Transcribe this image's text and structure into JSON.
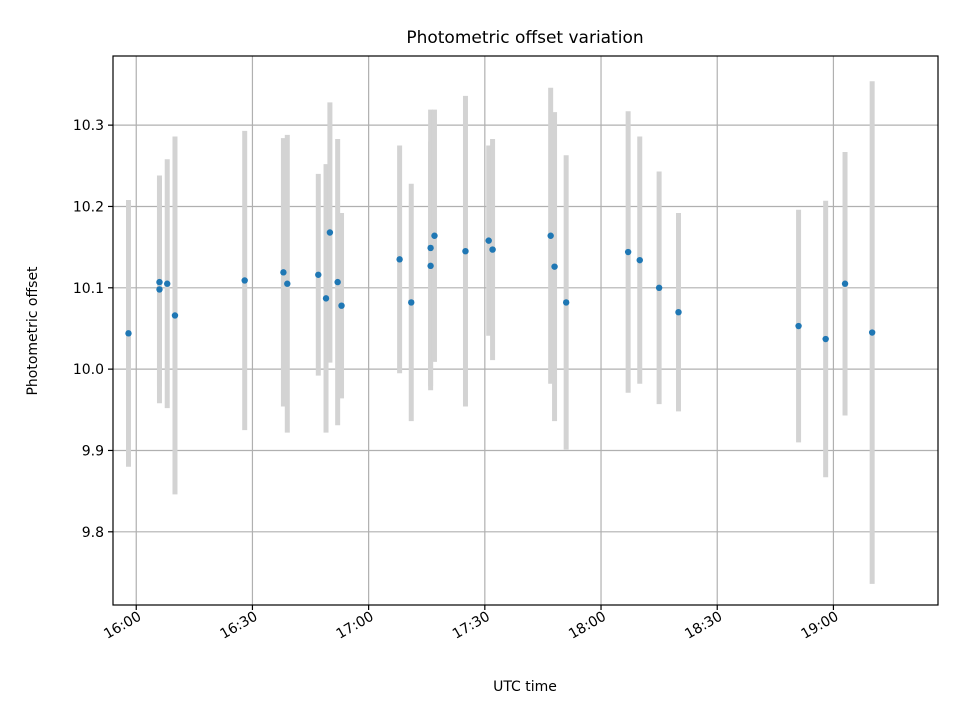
{
  "chart_data": {
    "type": "scatter",
    "title": "Photometric offset variation",
    "xlabel": "UTC time",
    "ylabel": "Photometric offset",
    "xlim": [
      "15:54",
      "19:27"
    ],
    "ylim": [
      9.71,
      10.385
    ],
    "x_ticks": [
      "16:00",
      "16:30",
      "17:00",
      "17:30",
      "18:00",
      "18:30",
      "19:00"
    ],
    "y_ticks": [
      9.8,
      9.9,
      10.0,
      10.1,
      10.2,
      10.3
    ],
    "grid": true,
    "marker_color": "#1f77b4",
    "errorbar_color": "#d3d3d3",
    "points": [
      {
        "x": "15:58",
        "y": 10.044,
        "err": 0.164
      },
      {
        "x": "16:06",
        "y": 10.107,
        "err": 0.128
      },
      {
        "x": "16:06",
        "y": 10.098,
        "err": 0.14
      },
      {
        "x": "16:08",
        "y": 10.105,
        "err": 0.153
      },
      {
        "x": "16:10",
        "y": 10.066,
        "err": 0.22
      },
      {
        "x": "16:28",
        "y": 10.109,
        "err": 0.184
      },
      {
        "x": "16:38",
        "y": 10.119,
        "err": 0.165
      },
      {
        "x": "16:39",
        "y": 10.105,
        "err": 0.183
      },
      {
        "x": "16:47",
        "y": 10.116,
        "err": 0.124
      },
      {
        "x": "16:49",
        "y": 10.087,
        "err": 0.165
      },
      {
        "x": "16:50",
        "y": 10.168,
        "err": 0.16
      },
      {
        "x": "16:52",
        "y": 10.107,
        "err": 0.176
      },
      {
        "x": "16:53",
        "y": 10.078,
        "err": 0.114
      },
      {
        "x": "17:08",
        "y": 10.135,
        "err": 0.14
      },
      {
        "x": "17:11",
        "y": 10.082,
        "err": 0.146
      },
      {
        "x": "17:16",
        "y": 10.127,
        "err": 0.153
      },
      {
        "x": "17:16",
        "y": 10.149,
        "err": 0.17
      },
      {
        "x": "17:17",
        "y": 10.164,
        "err": 0.155
      },
      {
        "x": "17:25",
        "y": 10.145,
        "err": 0.191
      },
      {
        "x": "17:31",
        "y": 10.158,
        "err": 0.117
      },
      {
        "x": "17:32",
        "y": 10.147,
        "err": 0.136
      },
      {
        "x": "17:47",
        "y": 10.164,
        "err": 0.182
      },
      {
        "x": "17:48",
        "y": 10.126,
        "err": 0.19
      },
      {
        "x": "17:51",
        "y": 10.082,
        "err": 0.181
      },
      {
        "x": "18:07",
        "y": 10.144,
        "err": 0.173
      },
      {
        "x": "18:10",
        "y": 10.134,
        "err": 0.152
      },
      {
        "x": "18:15",
        "y": 10.1,
        "err": 0.143
      },
      {
        "x": "18:20",
        "y": 10.07,
        "err": 0.122
      },
      {
        "x": "18:51",
        "y": 10.053,
        "err": 0.143
      },
      {
        "x": "18:58",
        "y": 10.037,
        "err": 0.17
      },
      {
        "x": "19:03",
        "y": 10.105,
        "err": 0.162
      },
      {
        "x": "19:10",
        "y": 10.045,
        "err": 0.309
      }
    ]
  }
}
